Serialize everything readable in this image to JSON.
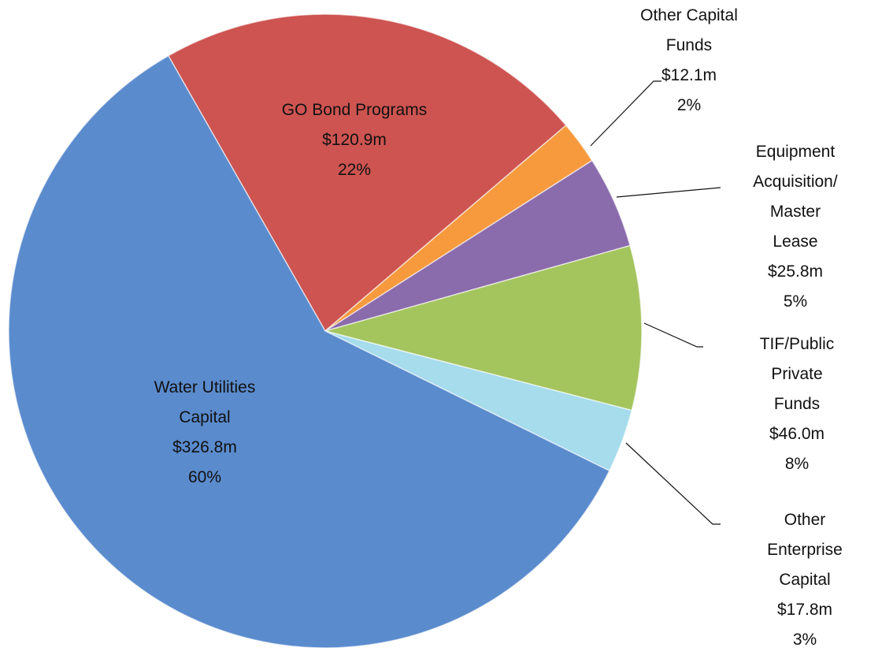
{
  "chart_data": {
    "type": "pie",
    "categories": [
      "GO Bond Programs",
      "Other Capital\nFunds",
      "Equipment\nAcquisition/\nMaster Lease",
      "TIF/Public Private\nFunds",
      "Other Enterprise\nCapital",
      "Water Utilities\nCapital"
    ],
    "values": [
      120.9,
      12.1,
      25.8,
      46.0,
      17.8,
      326.8
    ],
    "value_labels": [
      "$120.9m",
      "$12.1m",
      "$25.8m",
      "$46.0m",
      "$17.8m",
      "$326.8m"
    ],
    "percent_values": [
      22,
      2,
      5,
      8,
      3,
      60
    ],
    "percent_labels": [
      "22%",
      "2%",
      "5%",
      "8%",
      "3%",
      "60%"
    ],
    "colors": [
      "#cd5451",
      "#f79a3d",
      "#8a6bab",
      "#a4c45e",
      "#a6dcec",
      "#5a8bcd"
    ]
  }
}
